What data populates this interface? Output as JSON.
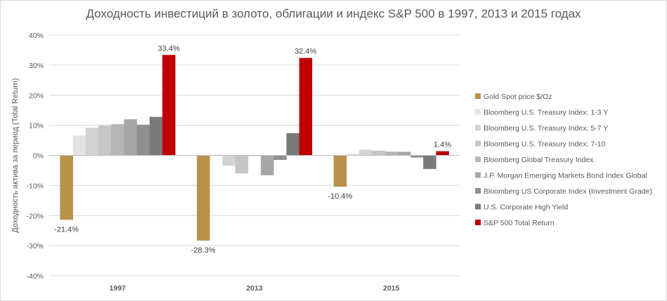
{
  "chart_data": {
    "type": "bar",
    "title": "Доходность инвестиций в золото, облигации и индекс S&P 500 в 1997, 2013 и 2015 годах",
    "xlabel": "",
    "ylabel": "Доходность актива за период (Total Return)",
    "ylim": [
      -40,
      40
    ],
    "y_ticks": [
      "40%",
      "30%",
      "20%",
      "10%",
      "0%",
      "-10%",
      "-20%",
      "-30%",
      "-40%"
    ],
    "grid": true,
    "legend_position": "right",
    "categories": [
      "1997",
      "2013",
      "2015"
    ],
    "series": [
      {
        "name": "Gold Spot price $/Oz",
        "color": "#b8914b",
        "values": [
          -21.4,
          -28.3,
          -10.4
        ],
        "labels": [
          "-21.4%",
          "-28.3%",
          "-10.4%"
        ]
      },
      {
        "name": "Bloomberg U.S. Treasury Index: 1-3 Y",
        "color": "#e3e3e3",
        "values": [
          6.6,
          0.3,
          0.6
        ],
        "labels": [
          "",
          "",
          ""
        ]
      },
      {
        "name": "Bloomberg U.S. Treasury Index: 5-7 Y",
        "color": "#d3d3d3",
        "values": [
          9.2,
          -3.4,
          1.9
        ],
        "labels": [
          "",
          "",
          ""
        ]
      },
      {
        "name": "Bloomberg U.S. Treasury Index: 7-10",
        "color": "#c6c6c6",
        "values": [
          10.0,
          -6.0,
          1.6
        ],
        "labels": [
          "",
          "",
          ""
        ]
      },
      {
        "name": "Bloomberg Global Treasury Index",
        "color": "#b6b6b6",
        "values": [
          10.4,
          -0.2,
          1.3
        ],
        "labels": [
          "",
          "",
          ""
        ]
      },
      {
        "name": "J.P. Morgan Emerging Markets Bond Index Global",
        "color": "#a6a6a6",
        "values": [
          12.0,
          -6.6,
          1.2
        ],
        "labels": [
          "",
          "",
          ""
        ]
      },
      {
        "name": "Bloomberg US Corporate Index (Investment Grade)",
        "color": "#8f8f8f",
        "values": [
          10.2,
          -1.5,
          -0.7
        ],
        "labels": [
          "",
          "",
          ""
        ]
      },
      {
        "name": "U.S. Corporate High Yield",
        "color": "#7a7a7a",
        "values": [
          12.8,
          7.4,
          -4.5
        ],
        "labels": [
          "",
          "",
          ""
        ]
      },
      {
        "name": "S&P 500 Total Return",
        "color": "#c00000",
        "values": [
          33.4,
          32.4,
          1.4
        ],
        "labels": [
          "33.4%",
          "32.4%",
          "1.4%"
        ]
      }
    ]
  }
}
